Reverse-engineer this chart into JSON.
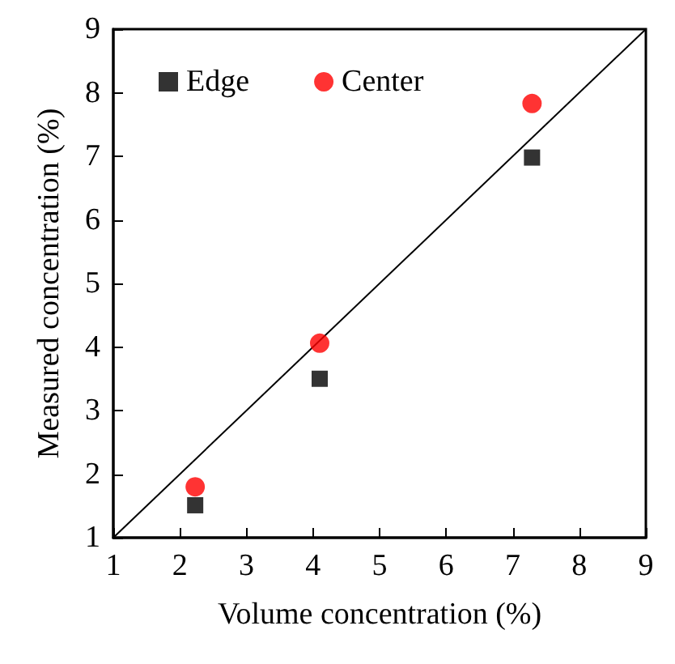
{
  "chart_data": {
    "type": "scatter",
    "xlabel": "Volume concentration (%)",
    "ylabel": "Measured concentration (%)",
    "xlim": [
      1,
      9
    ],
    "ylim": [
      1,
      9
    ],
    "xticks": [
      1,
      2,
      3,
      4,
      5,
      6,
      7,
      8,
      9
    ],
    "yticks": [
      1,
      2,
      3,
      4,
      5,
      6,
      7,
      8,
      9
    ],
    "grid": false,
    "legend": "top left",
    "series": [
      {
        "name": "Edge",
        "color": "#000000",
        "marker": "square",
        "x": [
          2.23,
          4.1,
          7.29
        ],
        "values": [
          1.51,
          3.5,
          6.98
        ]
      },
      {
        "name": "Center",
        "color": "#ff0000",
        "marker": "circle",
        "x": [
          2.23,
          4.1,
          7.29
        ],
        "values": [
          1.8,
          4.06,
          7.83
        ]
      },
      {
        "type": "line",
        "color": "#000000",
        "marker": "none",
        "x": [
          1,
          9
        ],
        "values": [
          1,
          9
        ]
      }
    ]
  }
}
